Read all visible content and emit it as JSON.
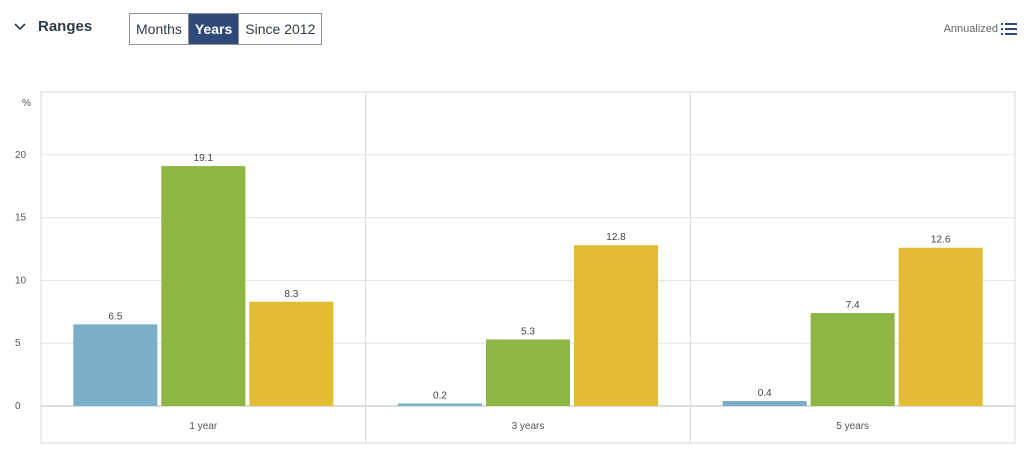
{
  "header": {
    "title": "Ranges",
    "tabs": [
      {
        "label": "Months",
        "active": false
      },
      {
        "label": "Years",
        "active": true
      },
      {
        "label": "Since 2012",
        "active": false
      }
    ],
    "annualized_label": "Annualized",
    "icons": {
      "toggle": "chevron-down-icon",
      "annualized": "list-icon"
    }
  },
  "colors": {
    "series": [
      "#7aaec9",
      "#8db645",
      "#e3bc33"
    ],
    "active_tab": "#2f4a79"
  },
  "chart_data": {
    "type": "bar",
    "ylabel": "%",
    "categories": [
      "1 year",
      "3 years",
      "5 years"
    ],
    "series": [
      {
        "values": [
          6.5,
          0.2,
          0.4
        ]
      },
      {
        "values": [
          19.1,
          5.3,
          7.4
        ]
      },
      {
        "values": [
          8.3,
          12.8,
          12.6
        ]
      }
    ],
    "ylim": [
      0,
      25
    ],
    "yticks": [
      0,
      5,
      10,
      15,
      20
    ],
    "grid": true
  }
}
